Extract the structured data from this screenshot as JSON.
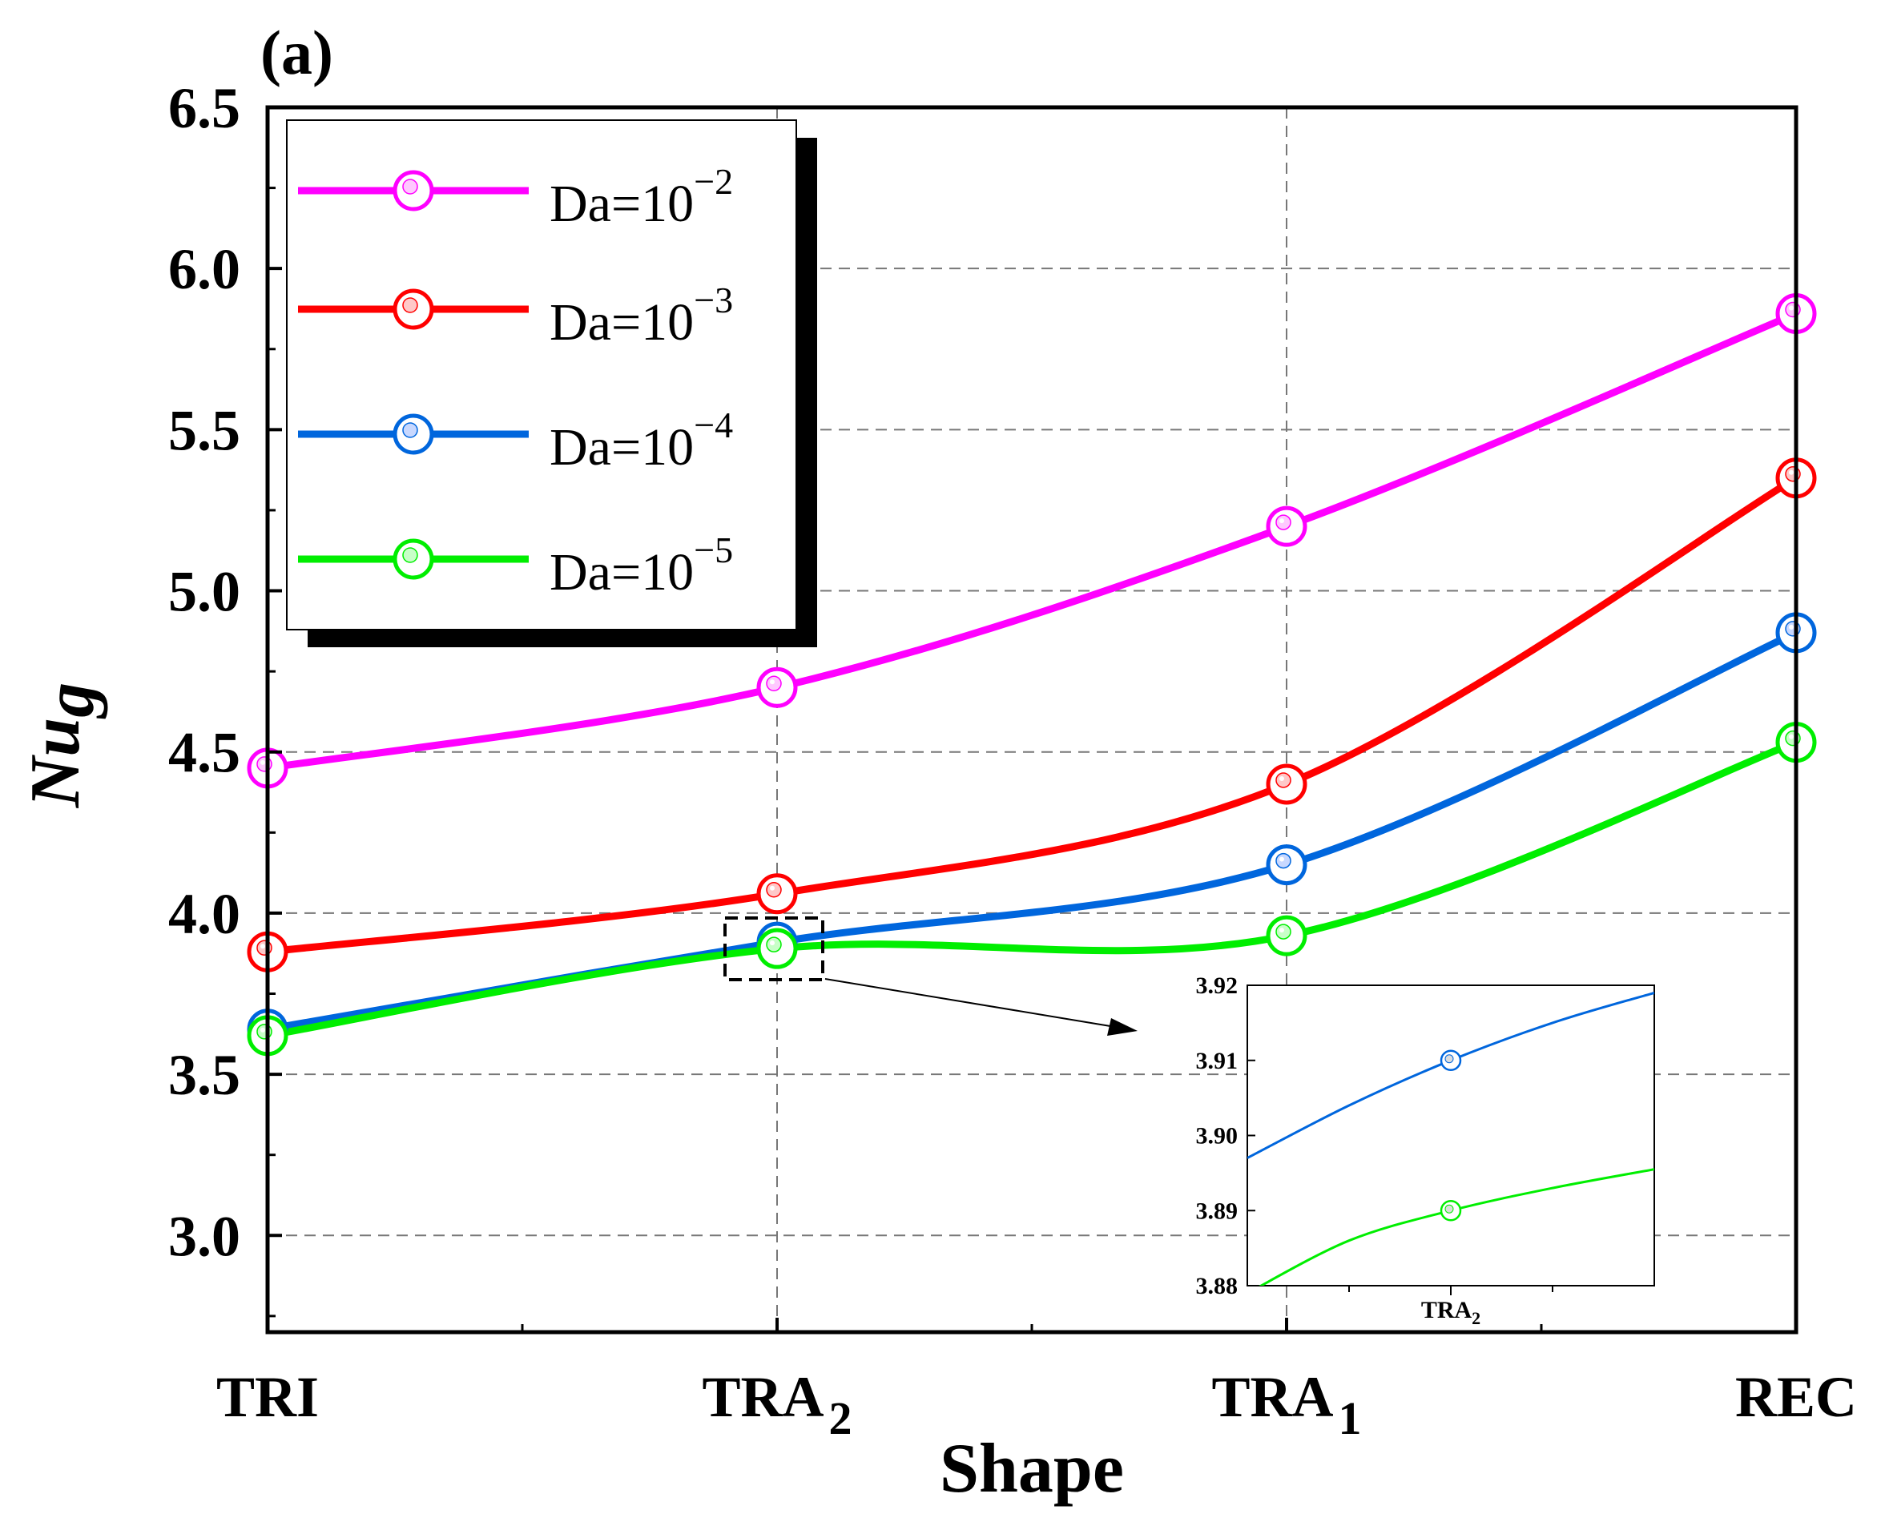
{
  "panel_label": "(a)",
  "chart_data": {
    "type": "line",
    "title": "",
    "xlabel": "Shape",
    "ylabel": "Nug",
    "categories": [
      {
        "id": "TRI",
        "base": "TRI",
        "sub": ""
      },
      {
        "id": "TRA2",
        "base": "TRA",
        "sub": "2"
      },
      {
        "id": "TRA1",
        "base": "TRA",
        "sub": "1"
      },
      {
        "id": "REC",
        "base": "REC",
        "sub": ""
      }
    ],
    "ylim": [
      2.7,
      6.5
    ],
    "yticks": [
      "3.0",
      "3.5",
      "4.0",
      "4.5",
      "5.0",
      "5.5",
      "6.0",
      "6.5"
    ],
    "grid": "dashed",
    "legend_position": "top-left",
    "series": [
      {
        "name": "Da=10^-2",
        "base": "Da=10",
        "exp": "−2",
        "color": "#ff00ff",
        "marker_fill": "#ffc8ff",
        "values": [
          4.45,
          4.7,
          5.2,
          5.86
        ]
      },
      {
        "name": "Da=10^-3",
        "base": "Da=10",
        "exp": "−3",
        "color": "#ff0000",
        "marker_fill": "#ffc8c8",
        "values": [
          3.88,
          4.06,
          4.4,
          5.35
        ]
      },
      {
        "name": "Da=10^-4",
        "base": "Da=10",
        "exp": "−4",
        "color": "#0066dd",
        "marker_fill": "#c8d8ff",
        "values": [
          3.64,
          3.91,
          4.15,
          4.87
        ]
      },
      {
        "name": "Da=10^-5",
        "base": "Da=10",
        "exp": "−5",
        "color": "#00ee00",
        "marker_fill": "#c8ffc8",
        "values": [
          3.62,
          3.89,
          3.93,
          4.53
        ]
      }
    ],
    "inset": {
      "xlabel_base": "TRA",
      "xlabel_sub": "2",
      "ylim": [
        3.88,
        3.92
      ],
      "yticks": [
        "3.88",
        "3.89",
        "3.90",
        "3.91",
        "3.92"
      ],
      "series": [
        {
          "name": "Da=10^-4",
          "color": "#0066dd",
          "x": [
            -1.0,
            -0.5,
            0.0,
            0.5,
            1.0
          ],
          "y": [
            3.897,
            3.904,
            3.91,
            3.915,
            3.919
          ]
        },
        {
          "name": "Da=10^-5",
          "color": "#00ee00",
          "x": [
            -1.0,
            -0.5,
            0.0,
            0.5,
            1.0
          ],
          "y": [
            3.879,
            3.886,
            3.89,
            3.893,
            3.8955
          ]
        }
      ],
      "marker_x": 0.0
    }
  }
}
